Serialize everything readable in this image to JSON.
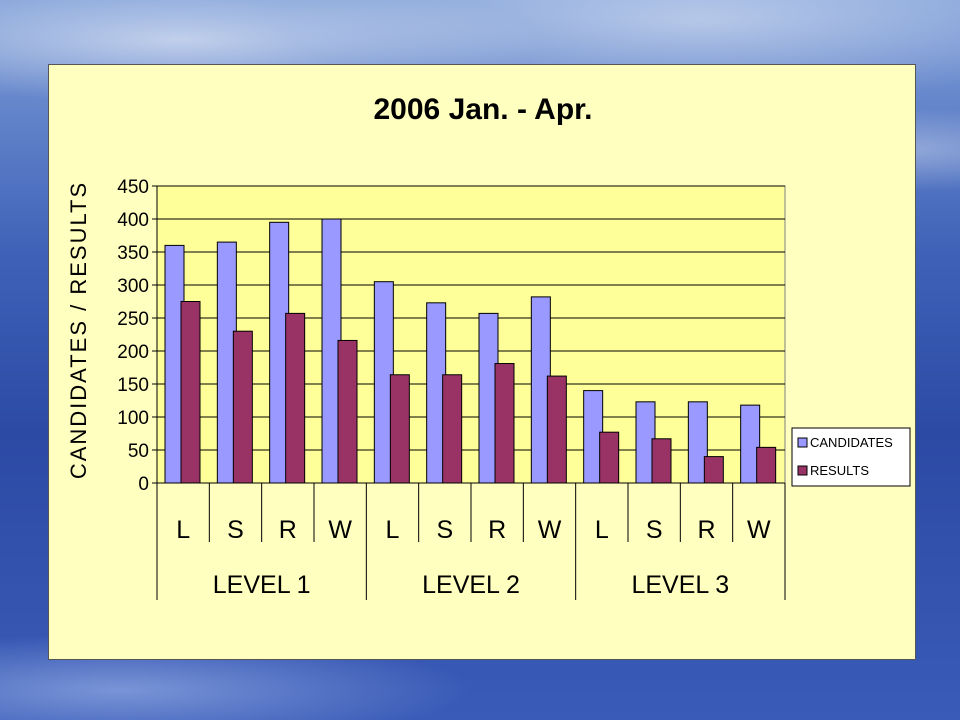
{
  "chart_data": {
    "type": "bar",
    "title": "2006 Jan. - Apr.",
    "ylabel": "CANDIDATES / RESULTS",
    "xlabel": "",
    "ylim": [
      0,
      450
    ],
    "yticks": [
      0,
      50,
      100,
      150,
      200,
      250,
      300,
      350,
      400,
      450
    ],
    "grid": true,
    "legend_position": "right",
    "categories": [
      "L",
      "S",
      "R",
      "W",
      "L",
      "S",
      "R",
      "W",
      "L",
      "S",
      "R",
      "W"
    ],
    "groups": [
      "LEVEL 1",
      "LEVEL 2",
      "LEVEL 3"
    ],
    "group_size": 4,
    "series": [
      {
        "name": "CANDIDATES",
        "color": "#9999ff",
        "values": [
          360,
          365,
          395,
          400,
          305,
          273,
          257,
          282,
          140,
          123,
          123,
          118
        ]
      },
      {
        "name": "RESULTS",
        "color": "#993366",
        "values": [
          275,
          230,
          257,
          216,
          164,
          164,
          181,
          162,
          77,
          67,
          40,
          54
        ]
      }
    ],
    "plot_background": "#ffff99",
    "frame_background": "#ffffc0"
  }
}
